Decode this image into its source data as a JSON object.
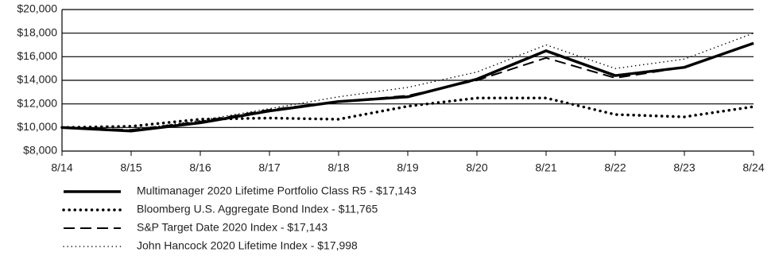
{
  "chart_data": {
    "type": "line",
    "categories": [
      "8/14",
      "8/15",
      "8/16",
      "8/17",
      "8/18",
      "8/19",
      "8/20",
      "8/21",
      "8/22",
      "8/23",
      "8/24"
    ],
    "series": [
      {
        "name": "Multimanager 2020 Lifetime Portfolio Class R5 - $17,143",
        "color": "#000000",
        "values": [
          10000,
          9700,
          10400,
          11400,
          12200,
          12600,
          14100,
          16500,
          14400,
          15100,
          17143
        ]
      },
      {
        "name": "Bloomberg U.S. Aggregate Bond Index - $11,765",
        "color": "#000000",
        "values": [
          10000,
          10100,
          10700,
          10800,
          10700,
          11800,
          12500,
          12500,
          11100,
          10900,
          11765
        ]
      },
      {
        "name": "S&P Target Date 2020 Index - $17,143",
        "color": "#000000",
        "values": [
          10000,
          9800,
          10500,
          11500,
          12200,
          12700,
          14000,
          15900,
          14200,
          15100,
          17143
        ]
      },
      {
        "name": "John Hancock 2020 Lifetime Index - $17,998",
        "color": "#000000",
        "values": [
          10000,
          9800,
          10600,
          11600,
          12600,
          13400,
          14700,
          17000,
          15000,
          15800,
          17998
        ]
      }
    ],
    "ylim": [
      8000,
      20000
    ],
    "yticks": [
      {
        "value": 8000,
        "label": "$8,000"
      },
      {
        "value": 10000,
        "label": "$10,000"
      },
      {
        "value": 12000,
        "label": "$12,000"
      },
      {
        "value": 14000,
        "label": "$14,000"
      },
      {
        "value": 16000,
        "label": "$16,000"
      },
      {
        "value": 18000,
        "label": "$18,000"
      },
      {
        "value": 20000,
        "label": "$20,000"
      }
    ],
    "grid": true
  }
}
